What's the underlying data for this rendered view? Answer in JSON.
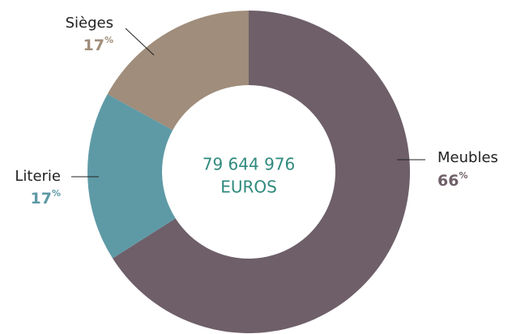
{
  "chart_data": {
    "type": "donut",
    "categories": [
      "Meubles",
      "Literie",
      "Sièges"
    ],
    "values": [
      66,
      17,
      17
    ],
    "value_unit": "%",
    "colors": [
      "#6e5f69",
      "#5e9aa6",
      "#a08d7b"
    ],
    "center_text": [
      "79 644 976",
      "EUROS"
    ]
  }
}
